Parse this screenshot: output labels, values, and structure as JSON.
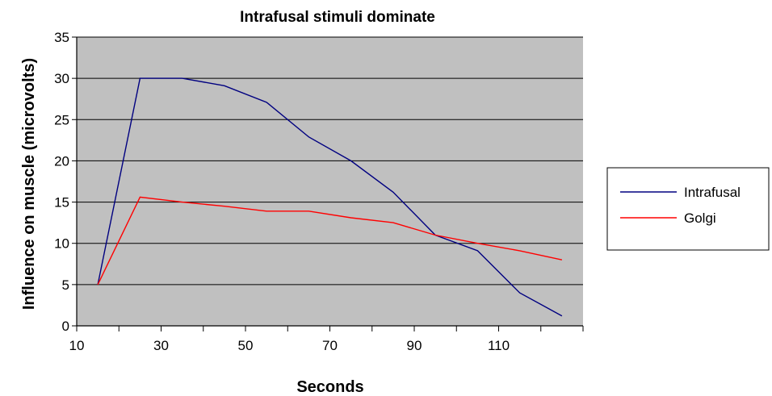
{
  "chart_data": {
    "type": "line",
    "title": "Intrafusal stimuli dominate",
    "xlabel": "Seconds",
    "ylabel": "Influence on muscle (microvolts)",
    "x": [
      15,
      25,
      35,
      45,
      55,
      65,
      75,
      85,
      95,
      105,
      115,
      125
    ],
    "xlim": [
      10,
      130
    ],
    "xticks": [
      10,
      30,
      50,
      70,
      90,
      110
    ],
    "ylim": [
      0,
      35
    ],
    "yticks": [
      0,
      5,
      10,
      15,
      20,
      25,
      30,
      35
    ],
    "grid": "horizontal",
    "legend_position": "right",
    "plot_background": "#c0c0c0",
    "series": [
      {
        "name": "Intrafusal",
        "color": "#000080",
        "values": [
          5,
          30,
          30,
          29.1,
          27.1,
          22.9,
          20,
          16.2,
          11,
          9.1,
          4,
          1.2
        ]
      },
      {
        "name": "Golgi",
        "color": "#ff0000",
        "values": [
          5,
          15.6,
          15,
          14.5,
          13.9,
          13.9,
          13.1,
          12.5,
          11,
          10,
          9.1,
          8
        ]
      }
    ]
  }
}
